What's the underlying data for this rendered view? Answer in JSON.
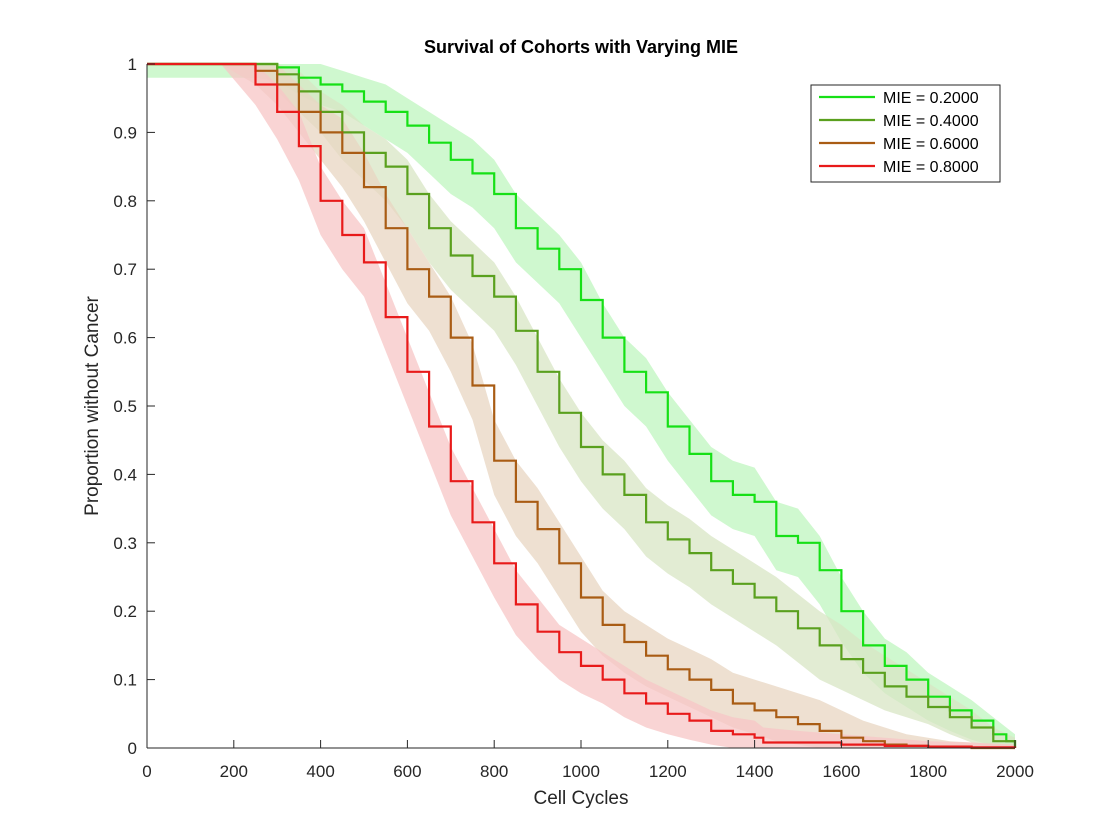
{
  "chart_data": {
    "type": "line",
    "title": "Survival of Cohorts with Varying MIE",
    "xlabel": "Cell Cycles",
    "ylabel": "Proportion without Cancer",
    "xlim": [
      0,
      2000
    ],
    "ylim": [
      0,
      1
    ],
    "xticks": [
      0,
      200,
      400,
      600,
      800,
      1000,
      1200,
      1400,
      1600,
      1800,
      2000
    ],
    "yticks": [
      0,
      0.1,
      0.2,
      0.3,
      0.4,
      0.5,
      0.6,
      0.7,
      0.8,
      0.9,
      1
    ],
    "ytick_labels": [
      "0",
      "0.1",
      "0.2",
      "0.3",
      "0.4",
      "0.5",
      "0.6",
      "0.7",
      "0.8",
      "0.9",
      "1"
    ],
    "grid": false,
    "legend_position": "top-right",
    "series": [
      {
        "name": "MIE = 0.2000",
        "color": "#16e016",
        "band_color": "#bff5bf",
        "x": [
          0,
          250,
          300,
          350,
          400,
          450,
          500,
          550,
          600,
          650,
          700,
          750,
          800,
          850,
          900,
          950,
          1000,
          1050,
          1100,
          1150,
          1200,
          1250,
          1300,
          1350,
          1400,
          1450,
          1500,
          1550,
          1600,
          1650,
          1700,
          1750,
          1800,
          1850,
          1900,
          1950,
          1980,
          2000
        ],
        "y": [
          1,
          1,
          0.995,
          0.98,
          0.97,
          0.96,
          0.945,
          0.93,
          0.91,
          0.885,
          0.86,
          0.84,
          0.81,
          0.76,
          0.73,
          0.7,
          0.655,
          0.6,
          0.55,
          0.52,
          0.47,
          0.43,
          0.39,
          0.37,
          0.36,
          0.31,
          0.3,
          0.26,
          0.2,
          0.15,
          0.12,
          0.1,
          0.075,
          0.055,
          0.04,
          0.02,
          0.01,
          0
        ],
        "lower": [
          0.98,
          0.98,
          0.975,
          0.955,
          0.94,
          0.93,
          0.91,
          0.89,
          0.87,
          0.84,
          0.81,
          0.79,
          0.76,
          0.71,
          0.68,
          0.65,
          0.6,
          0.55,
          0.5,
          0.47,
          0.42,
          0.38,
          0.34,
          0.32,
          0.31,
          0.26,
          0.25,
          0.21,
          0.155,
          0.11,
          0.08,
          0.06,
          0.04,
          0.025,
          0.012,
          0.003,
          0,
          0
        ],
        "upper": [
          1,
          1,
          1,
          1,
          1,
          0.99,
          0.98,
          0.97,
          0.95,
          0.93,
          0.91,
          0.89,
          0.86,
          0.81,
          0.78,
          0.75,
          0.71,
          0.65,
          0.6,
          0.57,
          0.52,
          0.48,
          0.44,
          0.42,
          0.41,
          0.36,
          0.35,
          0.31,
          0.25,
          0.2,
          0.16,
          0.14,
          0.11,
          0.09,
          0.07,
          0.045,
          0.03,
          0.02
        ]
      },
      {
        "name": "MIE = 0.4000",
        "color": "#5aa01e",
        "band_color": "#d8e6c4",
        "x": [
          0,
          250,
          300,
          350,
          400,
          450,
          500,
          550,
          600,
          650,
          700,
          750,
          800,
          850,
          900,
          950,
          1000,
          1050,
          1100,
          1150,
          1200,
          1250,
          1300,
          1350,
          1400,
          1450,
          1500,
          1550,
          1600,
          1650,
          1700,
          1750,
          1800,
          1850,
          1900,
          1950,
          2000
        ],
        "y": [
          1,
          1,
          0.985,
          0.96,
          0.93,
          0.9,
          0.87,
          0.85,
          0.81,
          0.76,
          0.72,
          0.69,
          0.66,
          0.61,
          0.55,
          0.49,
          0.44,
          0.4,
          0.37,
          0.33,
          0.305,
          0.285,
          0.26,
          0.24,
          0.22,
          0.2,
          0.175,
          0.15,
          0.13,
          0.11,
          0.09,
          0.075,
          0.06,
          0.045,
          0.03,
          0.01,
          0
        ],
        "lower": [
          1,
          1,
          0.96,
          0.93,
          0.9,
          0.86,
          0.83,
          0.8,
          0.76,
          0.71,
          0.67,
          0.64,
          0.61,
          0.56,
          0.5,
          0.44,
          0.39,
          0.35,
          0.32,
          0.28,
          0.255,
          0.235,
          0.21,
          0.19,
          0.17,
          0.15,
          0.125,
          0.1,
          0.085,
          0.07,
          0.055,
          0.045,
          0.035,
          0.02,
          0.008,
          0,
          0
        ],
        "upper": [
          1,
          1,
          1,
          0.99,
          0.96,
          0.94,
          0.91,
          0.89,
          0.86,
          0.81,
          0.77,
          0.74,
          0.71,
          0.66,
          0.6,
          0.54,
          0.49,
          0.45,
          0.42,
          0.38,
          0.355,
          0.335,
          0.31,
          0.29,
          0.27,
          0.25,
          0.225,
          0.2,
          0.18,
          0.155,
          0.135,
          0.115,
          0.095,
          0.075,
          0.055,
          0.03,
          0.015
        ]
      },
      {
        "name": "MIE = 0.6000",
        "color": "#a95c14",
        "band_color": "#e8d5c2",
        "x": [
          0,
          170,
          250,
          300,
          350,
          400,
          450,
          500,
          550,
          600,
          650,
          700,
          750,
          800,
          850,
          900,
          950,
          1000,
          1050,
          1100,
          1150,
          1200,
          1250,
          1300,
          1350,
          1400,
          1450,
          1500,
          1550,
          1600,
          1650,
          1700,
          1750,
          1800,
          1850,
          1900,
          1950,
          2000
        ],
        "y": [
          1,
          1,
          0.99,
          0.97,
          0.93,
          0.9,
          0.87,
          0.82,
          0.76,
          0.7,
          0.66,
          0.6,
          0.53,
          0.42,
          0.36,
          0.32,
          0.27,
          0.22,
          0.18,
          0.155,
          0.135,
          0.115,
          0.1,
          0.085,
          0.065,
          0.055,
          0.045,
          0.035,
          0.025,
          0.015,
          0.01,
          0.005,
          0.003,
          0.002,
          0.001,
          0,
          0,
          0
        ],
        "lower": [
          1,
          1,
          0.97,
          0.94,
          0.9,
          0.86,
          0.82,
          0.77,
          0.71,
          0.65,
          0.61,
          0.55,
          0.48,
          0.37,
          0.31,
          0.27,
          0.22,
          0.17,
          0.135,
          0.11,
          0.09,
          0.075,
          0.06,
          0.045,
          0.03,
          0.02,
          0.01,
          0.005,
          0,
          0,
          0,
          0,
          0,
          0,
          0,
          0,
          0,
          0
        ],
        "upper": [
          1,
          1,
          1,
          1,
          0.97,
          0.94,
          0.92,
          0.87,
          0.81,
          0.76,
          0.71,
          0.66,
          0.59,
          0.48,
          0.42,
          0.38,
          0.33,
          0.28,
          0.23,
          0.2,
          0.18,
          0.16,
          0.145,
          0.13,
          0.11,
          0.1,
          0.09,
          0.08,
          0.07,
          0.055,
          0.04,
          0.03,
          0.02,
          0.015,
          0.01,
          0.008,
          0.005,
          0.003
        ]
      },
      {
        "name": "MIE = 0.8000",
        "color": "#e81a1a",
        "band_color": "#f7c6c6",
        "x": [
          0,
          170,
          250,
          300,
          350,
          400,
          450,
          500,
          550,
          600,
          650,
          700,
          750,
          800,
          850,
          900,
          950,
          1000,
          1050,
          1100,
          1150,
          1200,
          1250,
          1300,
          1350,
          1400,
          1420,
          1500,
          1600,
          1700,
          1800,
          1900,
          2000
        ],
        "y": [
          1,
          1,
          0.97,
          0.93,
          0.88,
          0.8,
          0.75,
          0.71,
          0.63,
          0.55,
          0.47,
          0.39,
          0.33,
          0.27,
          0.21,
          0.17,
          0.14,
          0.12,
          0.1,
          0.08,
          0.065,
          0.05,
          0.04,
          0.025,
          0.02,
          0.015,
          0.008,
          0.008,
          0.005,
          0.003,
          0.002,
          0.001,
          0
        ],
        "lower": [
          1,
          1,
          0.94,
          0.89,
          0.83,
          0.75,
          0.7,
          0.66,
          0.58,
          0.5,
          0.42,
          0.34,
          0.28,
          0.22,
          0.165,
          0.13,
          0.1,
          0.08,
          0.065,
          0.045,
          0.03,
          0.02,
          0.012,
          0.005,
          0,
          0,
          0,
          0,
          0,
          0,
          0,
          0,
          0
        ],
        "upper": [
          1,
          1,
          1,
          0.97,
          0.93,
          0.85,
          0.8,
          0.76,
          0.68,
          0.6,
          0.52,
          0.44,
          0.38,
          0.32,
          0.26,
          0.22,
          0.18,
          0.16,
          0.14,
          0.12,
          0.1,
          0.085,
          0.07,
          0.055,
          0.045,
          0.04,
          0.03,
          0.025,
          0.02,
          0.015,
          0.01,
          0.008,
          0.005
        ]
      }
    ]
  }
}
